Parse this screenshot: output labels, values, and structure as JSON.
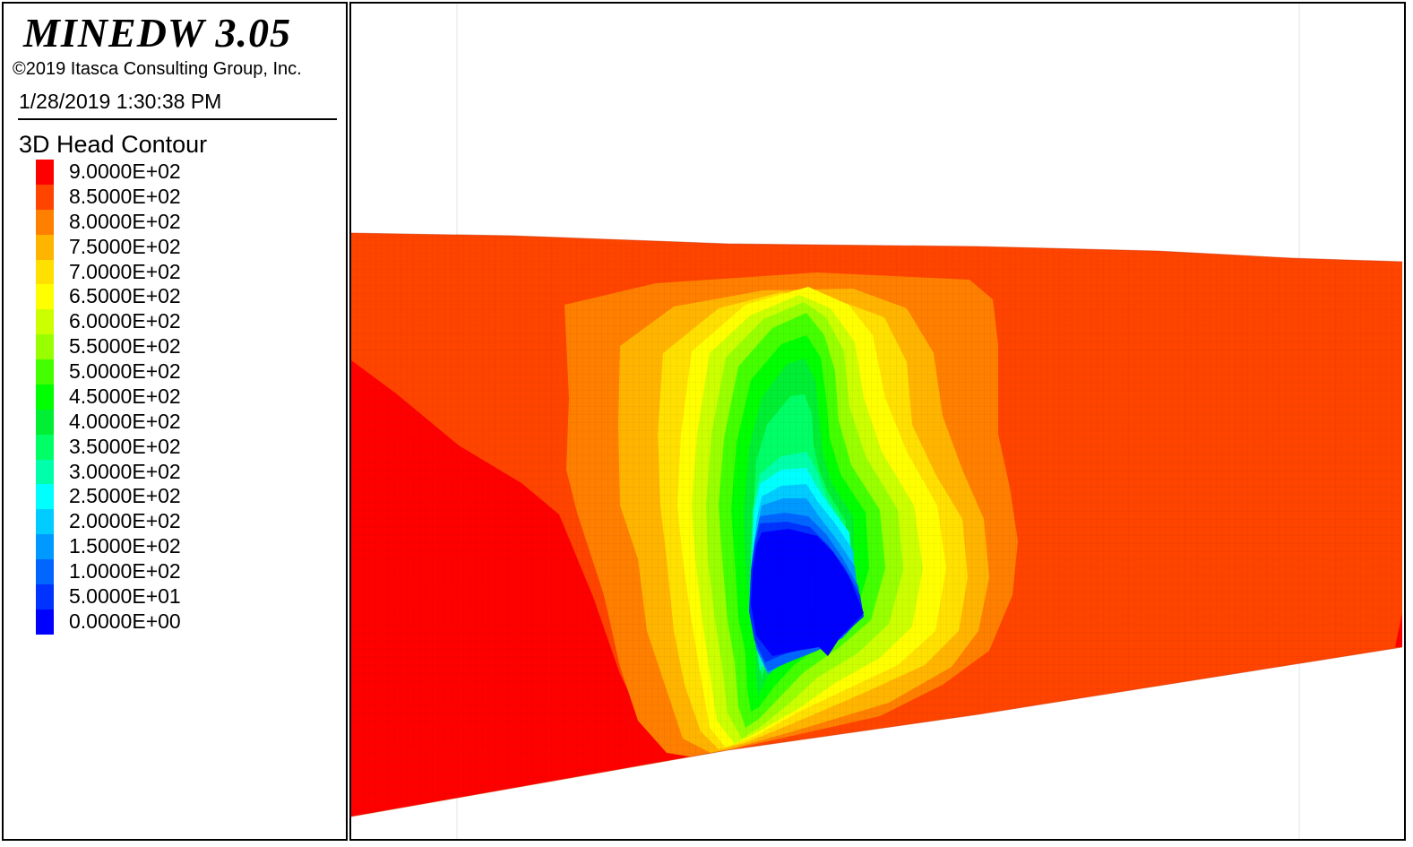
{
  "header": {
    "app_title": "MINEDW 3.05",
    "copyright": "©2019 Itasca Consulting Group, Inc.",
    "timestamp": "1/28/2019 1:30:38 PM"
  },
  "legend": {
    "title": "3D Head Contour",
    "levels": [
      {
        "label": "9.0000E+02",
        "color": "#ff0000"
      },
      {
        "label": "8.5000E+02",
        "color": "#ff4400"
      },
      {
        "label": "8.0000E+02",
        "color": "#ff7f00"
      },
      {
        "label": "7.5000E+02",
        "color": "#ffb400"
      },
      {
        "label": "7.0000E+02",
        "color": "#ffe000"
      },
      {
        "label": "6.5000E+02",
        "color": "#ffff00"
      },
      {
        "label": "6.0000E+02",
        "color": "#ccff00"
      },
      {
        "label": "5.5000E+02",
        "color": "#99ff00"
      },
      {
        "label": "5.0000E+02",
        "color": "#44ff00"
      },
      {
        "label": "4.5000E+02",
        "color": "#00ff00"
      },
      {
        "label": "4.0000E+02",
        "color": "#00ee33"
      },
      {
        "label": "3.5000E+02",
        "color": "#00ff66"
      },
      {
        "label": "3.0000E+02",
        "color": "#00ffaa"
      },
      {
        "label": "2.5000E+02",
        "color": "#00ffff"
      },
      {
        "label": "2.0000E+02",
        "color": "#00ccff"
      },
      {
        "label": "1.5000E+02",
        "color": "#0099ff"
      },
      {
        "label": "1.0000E+02",
        "color": "#0066ff"
      },
      {
        "label": "5.0000E+01",
        "color": "#0033ff"
      },
      {
        "label": "0.0000E+00",
        "color": "#0000ff"
      }
    ]
  }
}
